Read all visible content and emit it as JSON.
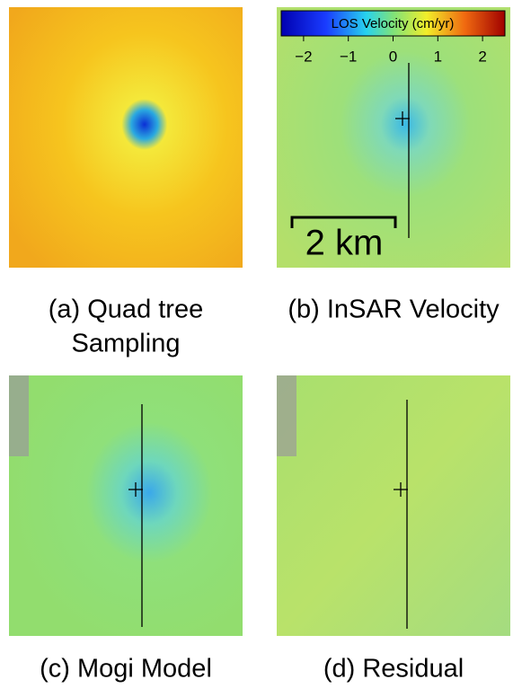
{
  "panels": [
    {
      "caption_lines": [
        "(a) Quad tree",
        "Sampling"
      ]
    },
    {
      "caption_lines": [
        "(b) InSAR Velocity"
      ]
    },
    {
      "caption_lines": [
        "(c) Mogi Model"
      ]
    },
    {
      "caption_lines": [
        "(d) Residual"
      ]
    }
  ],
  "colorbar": {
    "title": "LOS Velocity (cm/yr)",
    "lim": [
      -2.5,
      2.5
    ],
    "ticks": [
      {
        "value": -2,
        "label": "−2"
      },
      {
        "value": -1,
        "label": "−1"
      },
      0,
      1,
      2
    ]
  },
  "scale_bar": {
    "label": "2 km"
  }
}
